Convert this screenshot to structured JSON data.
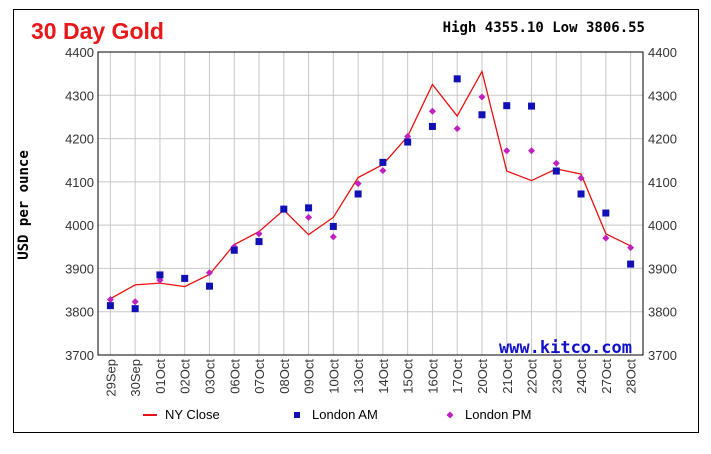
{
  "header": {
    "title": "30 Day Gold",
    "high_label": "High",
    "high_value": "4355.10",
    "low_label": "Low",
    "low_value": "3806.55"
  },
  "watermark": "www.kitco.com",
  "colors": {
    "title": "#e8171a",
    "ny_close": "#e81010",
    "london_am": "#1010b4",
    "london_pm": "#c020c0",
    "grid": "#c8c8c8",
    "watermark": "#1010c8"
  },
  "chart_data": {
    "type": "line",
    "title": "30 Day Gold",
    "ylabel": "USD per ounce",
    "xlabel": "",
    "ylim": [
      3700,
      4400
    ],
    "yticks": [
      3700,
      3800,
      3900,
      4000,
      4100,
      4200,
      4300,
      4400
    ],
    "grid": true,
    "legend_position": "bottom",
    "categories": [
      "29Sep",
      "30Sep",
      "01Oct",
      "02Oct",
      "03Oct",
      "06Oct",
      "07Oct",
      "08Oct",
      "09Oct",
      "10Oct",
      "13Oct",
      "14Oct",
      "15Oct",
      "16Oct",
      "17Oct",
      "20Oct",
      "21Oct",
      "22Oct",
      "23Oct",
      "24Oct",
      "27Oct",
      "28Oct"
    ],
    "series": [
      {
        "name": "NY Close",
        "style": "line",
        "values": [
          3830,
          3862,
          3866,
          3858,
          3886,
          3955,
          3985,
          4035,
          3978,
          4018,
          4110,
          4140,
          4205,
          4325,
          4252,
          4355,
          4125,
          4103,
          4130,
          4118,
          3980,
          3952
        ]
      },
      {
        "name": "London AM",
        "style": "square",
        "values": [
          3814,
          3807,
          3885,
          3877,
          3859,
          3942,
          3962,
          4037,
          4040,
          3997,
          4072,
          4145,
          4192,
          4228,
          4338,
          4255,
          4276,
          4275,
          4125,
          4072,
          4028,
          3910
        ]
      },
      {
        "name": "London PM",
        "style": "diamond",
        "values": [
          3828,
          3823,
          3873,
          3877,
          3890,
          3950,
          3980,
          4038,
          4018,
          3973,
          4096,
          4126,
          4205,
          4263,
          4223,
          4296,
          4172,
          4172,
          4143,
          4109,
          3970,
          3948
        ]
      }
    ]
  }
}
